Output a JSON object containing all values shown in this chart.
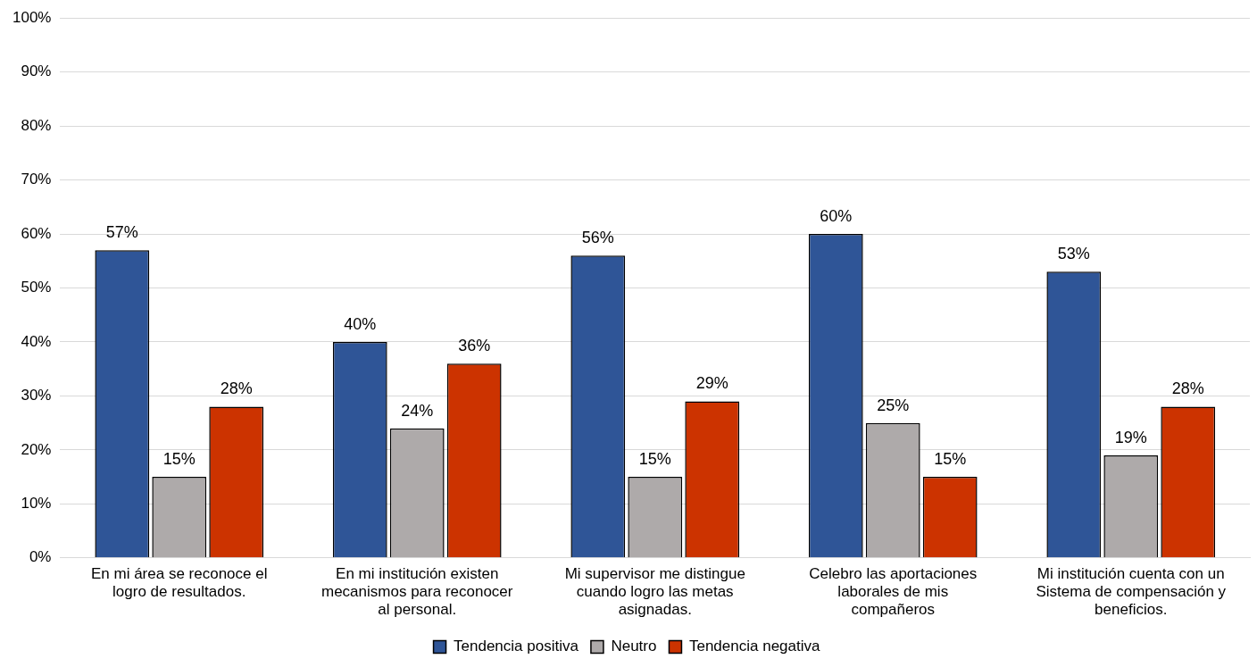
{
  "chart_data": {
    "type": "bar",
    "categories": [
      "En mi área se reconoce el logro de resultados.",
      "En mi institución existen mecanismos para reconocer al personal.",
      "Mi supervisor me distingue cuando logro las metas asignadas.",
      "Celebro las aportaciones laborales de mis compañeros",
      "Mi institución cuenta con un Sistema de compensación y beneficios."
    ],
    "series": [
      {
        "name": "Tendencia positiva",
        "color": "#2f5597",
        "values": [
          57,
          40,
          56,
          60,
          53
        ],
        "value_labels": [
          "57%",
          "40%",
          "56%",
          "60%",
          "53%"
        ]
      },
      {
        "name": "Neutro",
        "color": "#aeaaaa",
        "values": [
          15,
          24,
          15,
          25,
          19
        ],
        "value_labels": [
          "15%",
          "24%",
          "15%",
          "25%",
          "19%"
        ]
      },
      {
        "name": "Tendencia negativa",
        "color": "#cc3300",
        "values": [
          28,
          36,
          29,
          15,
          28
        ],
        "value_labels": [
          "28%",
          "36%",
          "29%",
          "15%",
          "28%"
        ]
      }
    ],
    "ylim": [
      0,
      100
    ],
    "yticks": [
      {
        "value": 0,
        "label": "0%"
      },
      {
        "value": 10,
        "label": "10%"
      },
      {
        "value": 20,
        "label": "20%"
      },
      {
        "value": 30,
        "label": "30%"
      },
      {
        "value": 40,
        "label": "40%"
      },
      {
        "value": 50,
        "label": "50%"
      },
      {
        "value": 60,
        "label": "60%"
      },
      {
        "value": 70,
        "label": "70%"
      },
      {
        "value": 80,
        "label": "80%"
      },
      {
        "value": 90,
        "label": "90%"
      },
      {
        "value": 100,
        "label": "100%"
      }
    ],
    "grid": "y",
    "legend": "bottom"
  }
}
